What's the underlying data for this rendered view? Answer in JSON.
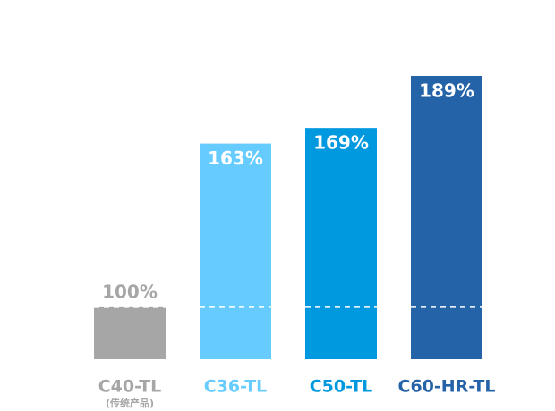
{
  "chart_data": {
    "type": "bar",
    "categories": [
      "C40-TL",
      "C36-TL",
      "C50-TL",
      "C60-HR-TL"
    ],
    "category_notes": [
      "(传统产品)",
      null,
      null,
      null
    ],
    "values": [
      100,
      163,
      169,
      189
    ],
    "value_labels": [
      "100%",
      "163%",
      "169%",
      "189%"
    ],
    "colors": [
      "#a6a6a6",
      "#66ccff",
      "#0099e0",
      "#2563a8"
    ],
    "ylim": [
      80,
      200
    ]
  }
}
